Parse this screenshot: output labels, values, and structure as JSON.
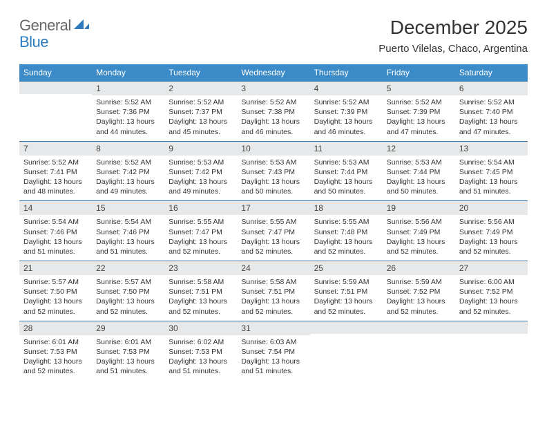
{
  "brand": {
    "part1": "General",
    "part2": "Blue"
  },
  "title": "December 2025",
  "location": "Puerto Vilelas, Chaco, Argentina",
  "colors": {
    "header_bg": "#3b8bc8",
    "header_text": "#ffffff",
    "row_rule": "#2f6fa3",
    "daynum_bg": "#e6e8ea",
    "body_text": "#333333",
    "brand_gray": "#666666",
    "brand_blue": "#2c7bbf",
    "page_bg": "#ffffff"
  },
  "typography": {
    "title_fontsize": 28,
    "location_fontsize": 15,
    "dayheader_fontsize": 12,
    "daynum_fontsize": 12,
    "body_fontsize": 10.5,
    "font_family": "Arial"
  },
  "day_headers": [
    "Sunday",
    "Monday",
    "Tuesday",
    "Wednesday",
    "Thursday",
    "Friday",
    "Saturday"
  ],
  "weeks": [
    [
      {
        "n": "",
        "body": ""
      },
      {
        "n": "1",
        "body": "Sunrise: 5:52 AM\nSunset: 7:36 PM\nDaylight: 13 hours and 44 minutes."
      },
      {
        "n": "2",
        "body": "Sunrise: 5:52 AM\nSunset: 7:37 PM\nDaylight: 13 hours and 45 minutes."
      },
      {
        "n": "3",
        "body": "Sunrise: 5:52 AM\nSunset: 7:38 PM\nDaylight: 13 hours and 46 minutes."
      },
      {
        "n": "4",
        "body": "Sunrise: 5:52 AM\nSunset: 7:39 PM\nDaylight: 13 hours and 46 minutes."
      },
      {
        "n": "5",
        "body": "Sunrise: 5:52 AM\nSunset: 7:39 PM\nDaylight: 13 hours and 47 minutes."
      },
      {
        "n": "6",
        "body": "Sunrise: 5:52 AM\nSunset: 7:40 PM\nDaylight: 13 hours and 47 minutes."
      }
    ],
    [
      {
        "n": "7",
        "body": "Sunrise: 5:52 AM\nSunset: 7:41 PM\nDaylight: 13 hours and 48 minutes."
      },
      {
        "n": "8",
        "body": "Sunrise: 5:52 AM\nSunset: 7:42 PM\nDaylight: 13 hours and 49 minutes."
      },
      {
        "n": "9",
        "body": "Sunrise: 5:53 AM\nSunset: 7:42 PM\nDaylight: 13 hours and 49 minutes."
      },
      {
        "n": "10",
        "body": "Sunrise: 5:53 AM\nSunset: 7:43 PM\nDaylight: 13 hours and 50 minutes."
      },
      {
        "n": "11",
        "body": "Sunrise: 5:53 AM\nSunset: 7:44 PM\nDaylight: 13 hours and 50 minutes."
      },
      {
        "n": "12",
        "body": "Sunrise: 5:53 AM\nSunset: 7:44 PM\nDaylight: 13 hours and 50 minutes."
      },
      {
        "n": "13",
        "body": "Sunrise: 5:54 AM\nSunset: 7:45 PM\nDaylight: 13 hours and 51 minutes."
      }
    ],
    [
      {
        "n": "14",
        "body": "Sunrise: 5:54 AM\nSunset: 7:46 PM\nDaylight: 13 hours and 51 minutes."
      },
      {
        "n": "15",
        "body": "Sunrise: 5:54 AM\nSunset: 7:46 PM\nDaylight: 13 hours and 51 minutes."
      },
      {
        "n": "16",
        "body": "Sunrise: 5:55 AM\nSunset: 7:47 PM\nDaylight: 13 hours and 52 minutes."
      },
      {
        "n": "17",
        "body": "Sunrise: 5:55 AM\nSunset: 7:47 PM\nDaylight: 13 hours and 52 minutes."
      },
      {
        "n": "18",
        "body": "Sunrise: 5:55 AM\nSunset: 7:48 PM\nDaylight: 13 hours and 52 minutes."
      },
      {
        "n": "19",
        "body": "Sunrise: 5:56 AM\nSunset: 7:49 PM\nDaylight: 13 hours and 52 minutes."
      },
      {
        "n": "20",
        "body": "Sunrise: 5:56 AM\nSunset: 7:49 PM\nDaylight: 13 hours and 52 minutes."
      }
    ],
    [
      {
        "n": "21",
        "body": "Sunrise: 5:57 AM\nSunset: 7:50 PM\nDaylight: 13 hours and 52 minutes."
      },
      {
        "n": "22",
        "body": "Sunrise: 5:57 AM\nSunset: 7:50 PM\nDaylight: 13 hours and 52 minutes."
      },
      {
        "n": "23",
        "body": "Sunrise: 5:58 AM\nSunset: 7:51 PM\nDaylight: 13 hours and 52 minutes."
      },
      {
        "n": "24",
        "body": "Sunrise: 5:58 AM\nSunset: 7:51 PM\nDaylight: 13 hours and 52 minutes."
      },
      {
        "n": "25",
        "body": "Sunrise: 5:59 AM\nSunset: 7:51 PM\nDaylight: 13 hours and 52 minutes."
      },
      {
        "n": "26",
        "body": "Sunrise: 5:59 AM\nSunset: 7:52 PM\nDaylight: 13 hours and 52 minutes."
      },
      {
        "n": "27",
        "body": "Sunrise: 6:00 AM\nSunset: 7:52 PM\nDaylight: 13 hours and 52 minutes."
      }
    ],
    [
      {
        "n": "28",
        "body": "Sunrise: 6:01 AM\nSunset: 7:53 PM\nDaylight: 13 hours and 52 minutes."
      },
      {
        "n": "29",
        "body": "Sunrise: 6:01 AM\nSunset: 7:53 PM\nDaylight: 13 hours and 51 minutes."
      },
      {
        "n": "30",
        "body": "Sunrise: 6:02 AM\nSunset: 7:53 PM\nDaylight: 13 hours and 51 minutes."
      },
      {
        "n": "31",
        "body": "Sunrise: 6:03 AM\nSunset: 7:54 PM\nDaylight: 13 hours and 51 minutes."
      },
      {
        "n": "",
        "body": ""
      },
      {
        "n": "",
        "body": ""
      },
      {
        "n": "",
        "body": ""
      }
    ]
  ]
}
